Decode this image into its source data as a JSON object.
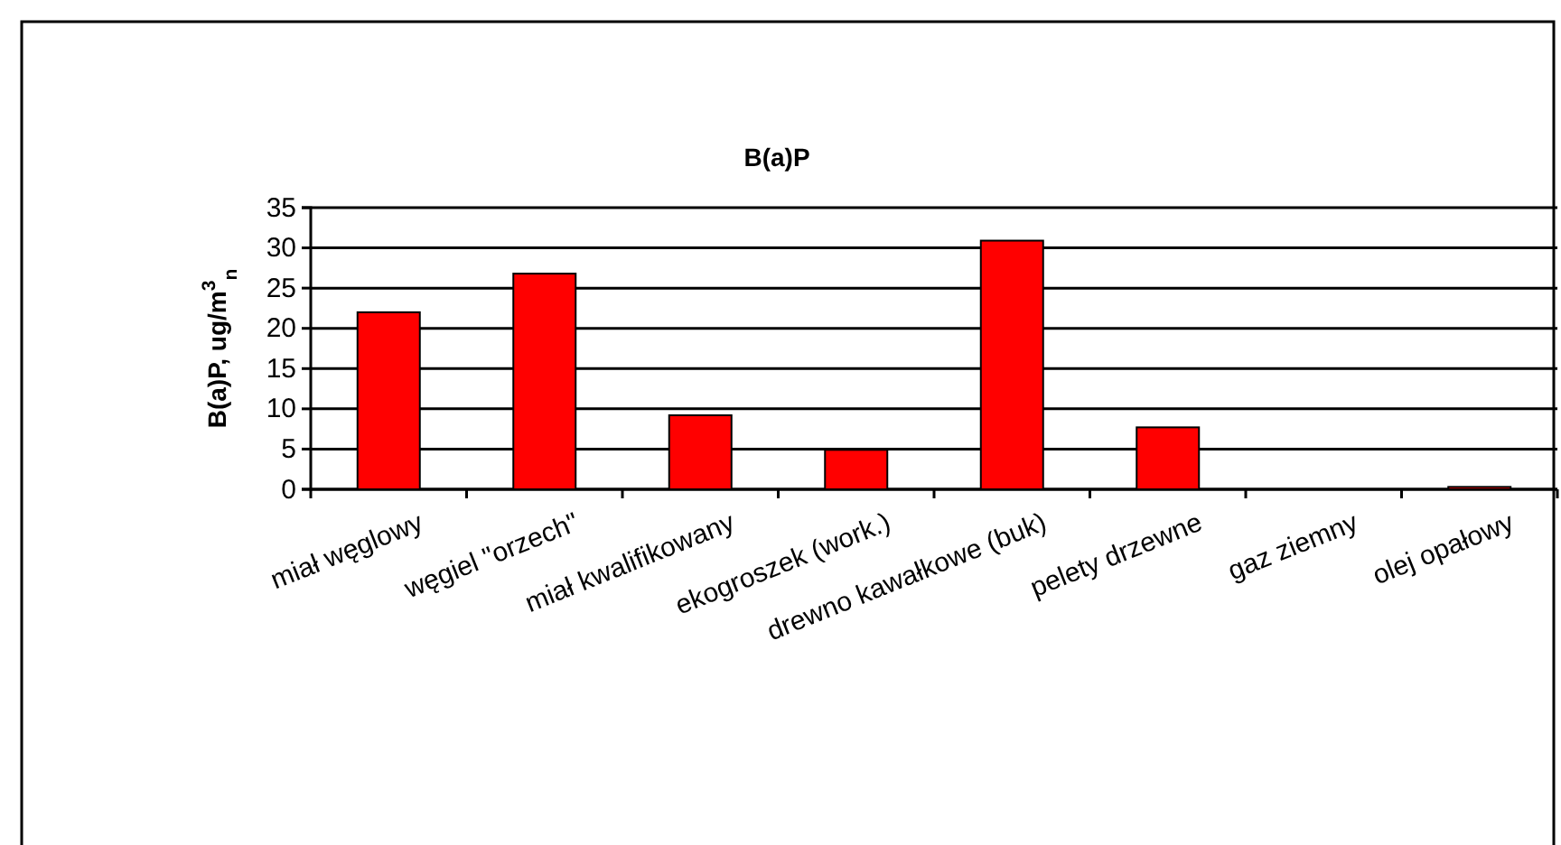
{
  "chart_data": {
    "type": "bar",
    "title": "B(a)P",
    "ylabel": "B(a)P, ug/m$^{3}$$_{n}$",
    "categories": [
      "miał węglowy",
      "węgiel \"orzech\"",
      "miał kwalifikowany",
      "ekogroszek (work.)",
      "drewno kawałkowe (buk)",
      "pelety drzewne",
      "gaz ziemny",
      "olej opałowy"
    ],
    "values": [
      22.0,
      26.8,
      9.2,
      4.9,
      30.9,
      7.7,
      0,
      0.3
    ],
    "color": "#ff0000",
    "ylim": [
      0,
      35
    ],
    "yticks": [
      0,
      5,
      10,
      15,
      20,
      25,
      30,
      35
    ],
    "grid": "y"
  }
}
